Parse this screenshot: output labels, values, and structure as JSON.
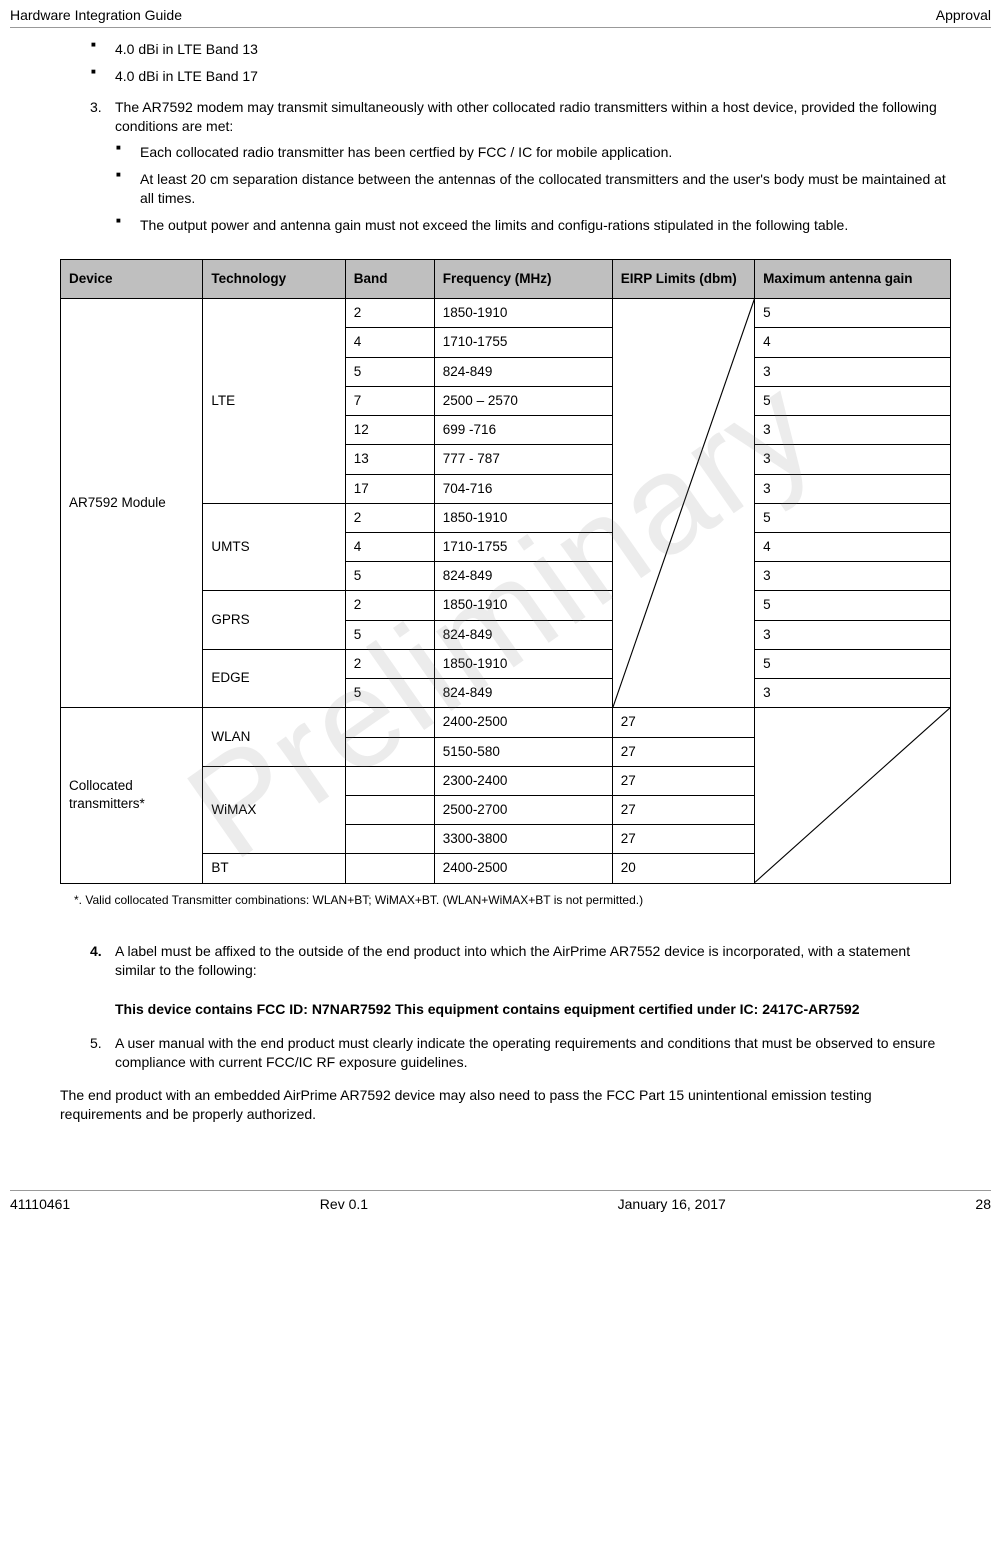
{
  "header": {
    "left": "Hardware Integration Guide",
    "right": "Approval"
  },
  "bullets_top": [
    "4.0 dBi in LTE Band 13",
    "4.0 dBi in LTE Band 17"
  ],
  "item3": {
    "num": "3.",
    "lead": "The AR7592 modem may transmit simultaneously with other collocated radio transmitters within a host device, provided the following conditions are met:",
    "subs": [
      "Each collocated radio transmitter has been certfied by FCC / IC for mobile application.",
      "At least 20 cm separation distance between the antennas of the collocated transmitters and the user's body must be maintained at all times.",
      "The output power and antenna gain must not exceed the limits and configu-rations stipulated in the following table."
    ]
  },
  "table": {
    "headers": [
      "Device",
      "Technology",
      "Band",
      "Frequency (MHz)",
      "EIRP Limits (dbm)",
      "Maximum antenna gain"
    ],
    "group1_device": "AR7592 Module",
    "group1": [
      {
        "tech": "LTE",
        "techspan": 7,
        "band": "2",
        "freq": "1850-1910",
        "gain": "5"
      },
      {
        "band": "4",
        "freq": "1710-1755",
        "gain": "4"
      },
      {
        "band": "5",
        "freq": "824-849",
        "gain": "3"
      },
      {
        "band": "7",
        "freq": "2500 – 2570",
        "gain": "5"
      },
      {
        "band": "12",
        "freq": "699 -716",
        "gain": "3"
      },
      {
        "band": "13",
        "freq": "777 - 787",
        "gain": "3"
      },
      {
        "band": "17",
        "freq": "704-716",
        "gain": "3"
      },
      {
        "tech": "UMTS",
        "techspan": 3,
        "band": "2",
        "freq": "1850-1910",
        "gain": "5"
      },
      {
        "band": "4",
        "freq": "1710-1755",
        "gain": "4"
      },
      {
        "band": "5",
        "freq": "824-849",
        "gain": "3"
      },
      {
        "tech": "GPRS",
        "techspan": 2,
        "band": "2",
        "freq": "1850-1910",
        "gain": "5"
      },
      {
        "band": "5",
        "freq": "824-849",
        "gain": "3"
      },
      {
        "tech": "EDGE",
        "techspan": 2,
        "band": "2",
        "freq": "1850-1910",
        "gain": "5"
      },
      {
        "band": "5",
        "freq": "824-849",
        "gain": "3"
      }
    ],
    "group2_device": "Collocated transmitters*",
    "group2": [
      {
        "tech": "WLAN",
        "techspan": 2,
        "band": "",
        "freq": "2400-2500",
        "eirp": "27"
      },
      {
        "band": "",
        "freq": "5150-580",
        "eirp": "27"
      },
      {
        "tech": "WiMAX",
        "techspan": 3,
        "band": "",
        "freq": "2300-2400",
        "eirp": "27"
      },
      {
        "band": "",
        "freq": "2500-2700",
        "eirp": "27"
      },
      {
        "band": "",
        "freq": "3300-3800",
        "eirp": "27"
      },
      {
        "tech": "BT",
        "techspan": 1,
        "band": "",
        "freq": "2400-2500",
        "eirp": "20"
      }
    ]
  },
  "table_note": "*. Valid collocated Transmitter combinations: WLAN+BT; WiMAX+BT. (WLAN+WiMAX+BT is not permitted.)",
  "item4": {
    "num": "4.",
    "lead": "A label must be affixed to the outside of the end product into which the AirPrime AR7552 device is incorporated, with a statement similar to the following:",
    "bold": "This device contains FCC ID: N7NAR7592 This equipment contains equipment certified under IC: 2417C-AR7592"
  },
  "item5": {
    "num": "5.",
    "lead": "A user manual with the end product must clearly indicate the operating requirements and conditions that must be observed to ensure compliance with current FCC/IC RF exposure guidelines."
  },
  "closing": "The end product with an embedded AirPrime AR7592 device may also need to pass the FCC Part 15 unintentional emission testing requirements and be properly authorized.",
  "footer": {
    "c1": "41110461",
    "c2": "Rev 0.1",
    "c3": "January 16, 2017",
    "c4": "28"
  },
  "watermark": "Preliminary"
}
